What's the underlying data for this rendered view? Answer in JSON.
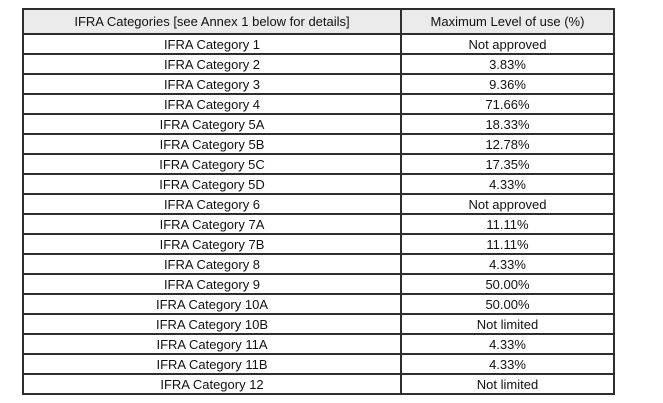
{
  "colors": {
    "page_bg": "#ffffff",
    "border": "#2e2e2e",
    "header_bg": "#ebebeb",
    "text": "#111111"
  },
  "table": {
    "headers": [
      "IFRA Categories [see Annex 1 below for details]",
      "Maximum Level of use (%)"
    ],
    "rows": [
      {
        "category": "IFRA Category 1",
        "max_level": "Not approved"
      },
      {
        "category": "IFRA Category 2",
        "max_level": "3.83%"
      },
      {
        "category": "IFRA Category 3",
        "max_level": "9.36%"
      },
      {
        "category": "IFRA Category 4",
        "max_level": "71.66%"
      },
      {
        "category": "IFRA Category 5A",
        "max_level": "18.33%"
      },
      {
        "category": "IFRA Category 5B",
        "max_level": "12.78%"
      },
      {
        "category": "IFRA Category 5C",
        "max_level": "17.35%"
      },
      {
        "category": "IFRA Category 5D",
        "max_level": "4.33%"
      },
      {
        "category": "IFRA Category 6",
        "max_level": "Not approved"
      },
      {
        "category": "IFRA Category 7A",
        "max_level": "11.11%"
      },
      {
        "category": "IFRA Category 7B",
        "max_level": "11.11%"
      },
      {
        "category": "IFRA Category 8",
        "max_level": "4.33%"
      },
      {
        "category": "IFRA Category 9",
        "max_level": "50.00%"
      },
      {
        "category": "IFRA Category 10A",
        "max_level": "50.00%"
      },
      {
        "category": "IFRA Category 10B",
        "max_level": "Not limited"
      },
      {
        "category": "IFRA Category 11A",
        "max_level": "4.33%"
      },
      {
        "category": "IFRA Category 11B",
        "max_level": "4.33%"
      },
      {
        "category": "IFRA Category 12",
        "max_level": "Not limited"
      }
    ]
  }
}
